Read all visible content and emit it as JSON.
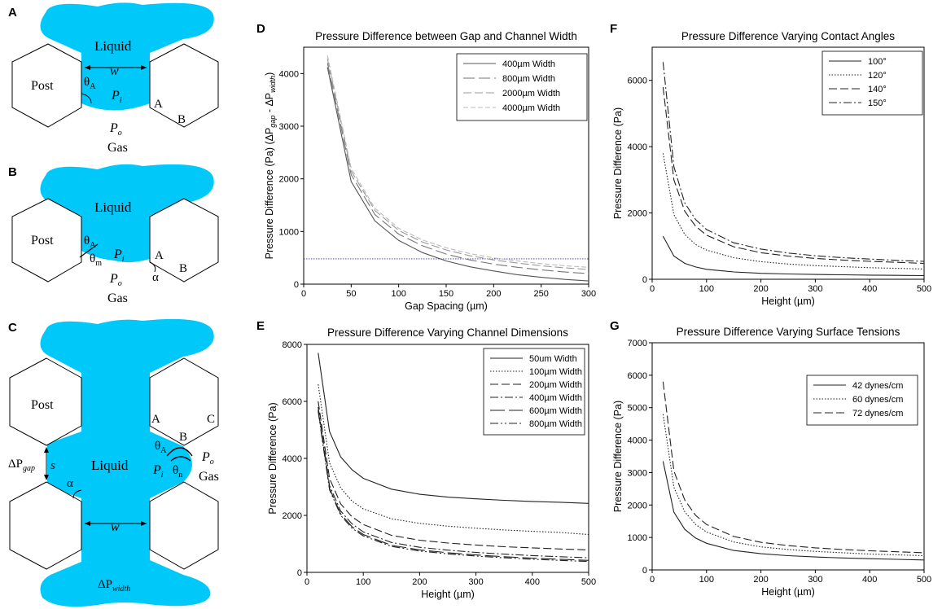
{
  "panel_letters": [
    "A",
    "B",
    "C",
    "D",
    "E",
    "F",
    "G"
  ],
  "schematics": {
    "A": {
      "liquid": "Liquid",
      "post": "Post",
      "gas": "Gas",
      "w": "w",
      "theta": "θ",
      "theta_sub": "A",
      "pi": "P",
      "pi_sub": "i",
      "po": "P",
      "po_sub": "o",
      "corner_a": "A",
      "corner_b": "B"
    },
    "B": {
      "liquid": "Liquid",
      "post": "Post",
      "gas": "Gas",
      "theta": "θ",
      "theta_sub": "A",
      "theta_m": "θ",
      "theta_m_sub": "m",
      "pi": "P",
      "pi_sub": "i",
      "po": "P",
      "po_sub": "o",
      "corner_a": "A",
      "corner_b": "B",
      "alpha": "α"
    },
    "C": {
      "liquid": "Liquid",
      "post": "Post",
      "gas": "Gas",
      "w": "w",
      "s": "s",
      "alpha": "α",
      "dp_gap": "ΔP",
      "dp_gap_sub": "gap",
      "dp_width": "ΔP",
      "dp_width_sub": "width",
      "theta": "θ",
      "theta_sub": "A",
      "theta_n": "θ",
      "theta_n_sub": "n",
      "pi": "P",
      "pi_sub": "i",
      "po": "P",
      "po_sub": "o",
      "corner_a": "A",
      "corner_b": "B",
      "corner_c": "C"
    }
  },
  "colors": {
    "liquid": "#00c8f8",
    "ref_line": "#3333cc"
  },
  "chart_data": [
    {
      "id": "D",
      "type": "line",
      "title": "Pressure Difference between Gap and Channel Width",
      "xlabel": "Gap Spacing (µm)",
      "ylabel": "Pressure Difference (Pa) (ΔP",
      "ylabel_sub1": "gap",
      "ylabel_mid": " - ΔP",
      "ylabel_sub2": "width",
      "ylabel_end": ")",
      "xlim": [
        0,
        300
      ],
      "ylim": [
        0,
        4500
      ],
      "xticks": [
        0,
        50,
        100,
        150,
        200,
        250,
        300
      ],
      "yticks": [
        0,
        1000,
        2000,
        3000,
        4000
      ],
      "legend_position": "top-right",
      "x": [
        25,
        50,
        75,
        100,
        125,
        150,
        175,
        200,
        225,
        250,
        275,
        300
      ],
      "series": [
        {
          "name": "400µm Width",
          "values": [
            4120,
            1950,
            1200,
            830,
            600,
            440,
            330,
            250,
            180,
            130,
            90,
            60
          ],
          "dash": "none",
          "color": "#555555"
        },
        {
          "name": "800µm Width",
          "values": [
            4200,
            2080,
            1320,
            950,
            730,
            570,
            460,
            380,
            320,
            270,
            230,
            200
          ],
          "dash": "14,5",
          "color": "#777777"
        },
        {
          "name": "2000µm Width",
          "values": [
            4280,
            2150,
            1400,
            1020,
            800,
            650,
            540,
            460,
            400,
            350,
            310,
            280
          ],
          "dash": "10,4",
          "color": "#999999"
        },
        {
          "name": "4000µm Width",
          "values": [
            4340,
            2200,
            1440,
            1060,
            840,
            690,
            580,
            500,
            440,
            390,
            350,
            320
          ],
          "dash": "6,3",
          "color": "#bbbbbb"
        }
      ],
      "ref_line": {
        "y": 480
      }
    },
    {
      "id": "E",
      "type": "line",
      "title": "Pressure Difference Varying Channel Dimensions",
      "xlabel": "Height (µm)",
      "ylabel": "Pressure Difference (Pa)",
      "xlim": [
        0,
        500
      ],
      "ylim": [
        0,
        8000
      ],
      "xticks": [
        0,
        100,
        200,
        300,
        400,
        500
      ],
      "yticks": [
        0,
        2000,
        4000,
        6000,
        8000
      ],
      "legend_position": "top-right",
      "x": [
        20,
        40,
        60,
        80,
        100,
        150,
        200,
        250,
        300,
        350,
        400,
        450,
        500
      ],
      "series": [
        {
          "name": "50um Width",
          "values": [
            7700,
            4950,
            4050,
            3600,
            3300,
            2920,
            2740,
            2640,
            2580,
            2530,
            2490,
            2460,
            2420
          ],
          "dash": "none",
          "color": "#222222"
        },
        {
          "name": "100µm Width",
          "values": [
            6600,
            3850,
            2960,
            2500,
            2230,
            1880,
            1720,
            1620,
            1550,
            1490,
            1440,
            1400,
            1330
          ],
          "dash": "1.5,2",
          "color": "#222222"
        },
        {
          "name": "200µm Width",
          "values": [
            6000,
            3300,
            2400,
            1950,
            1680,
            1300,
            1130,
            1030,
            960,
            900,
            860,
            820,
            790
          ],
          "dash": "10,4",
          "color": "#222222"
        },
        {
          "name": "400µm Width",
          "values": [
            5800,
            3050,
            2150,
            1700,
            1420,
            1050,
            880,
            780,
            700,
            640,
            590,
            550,
            510
          ],
          "dash": "10,3,2,3",
          "color": "#222222"
        },
        {
          "name": "600µm Width",
          "values": [
            5700,
            2950,
            2050,
            1600,
            1330,
            950,
            790,
            690,
            610,
            550,
            500,
            460,
            420
          ],
          "dash": "18,5",
          "color": "#222222"
        },
        {
          "name": "800µm Width",
          "values": [
            5650,
            2900,
            2000,
            1550,
            1280,
            910,
            750,
            650,
            570,
            510,
            460,
            420,
            380
          ],
          "dash": "10,3,2,3,2,3",
          "color": "#222222"
        }
      ]
    },
    {
      "id": "F",
      "type": "line",
      "title": "Pressure Difference Varying Contact Angles",
      "xlabel": "Height (µm)",
      "ylabel": "Pressure Difference (Pa)",
      "xlim": [
        0,
        500
      ],
      "ylim": [
        0,
        7000
      ],
      "xticks": [
        0,
        100,
        200,
        300,
        400,
        500
      ],
      "yticks": [
        0,
        2000,
        4000,
        6000
      ],
      "legend_position": "top-right",
      "x": [
        20,
        40,
        60,
        80,
        100,
        150,
        200,
        250,
        300,
        350,
        400,
        450,
        500
      ],
      "series": [
        {
          "name": "100°",
          "values": [
            1300,
            700,
            480,
            370,
            300,
            220,
            180,
            160,
            145,
            135,
            125,
            118,
            110
          ],
          "dash": "none",
          "color": "#222222"
        },
        {
          "name": "120°",
          "values": [
            3800,
            1950,
            1350,
            1050,
            880,
            650,
            530,
            460,
            410,
            380,
            350,
            330,
            310
          ],
          "dash": "1.5,2",
          "color": "#222222"
        },
        {
          "name": "140°",
          "values": [
            5800,
            3000,
            2050,
            1600,
            1330,
            980,
            800,
            700,
            630,
            580,
            540,
            510,
            480
          ],
          "dash": "10,4",
          "color": "#222222"
        },
        {
          "name": "150°",
          "values": [
            6550,
            3400,
            2300,
            1800,
            1500,
            1100,
            910,
            790,
            710,
            650,
            610,
            570,
            540
          ],
          "dash": "10,3,2,3",
          "color": "#222222"
        }
      ]
    },
    {
      "id": "G",
      "type": "line",
      "title": "Pressure Difference Varying Surface Tensions",
      "xlabel": "Height (µm)",
      "ylabel": "Pressure Difference (Pa)",
      "xlim": [
        0,
        500
      ],
      "ylim": [
        0,
        7000
      ],
      "xticks": [
        0,
        100,
        200,
        300,
        400,
        500
      ],
      "yticks": [
        0,
        1000,
        2000,
        3000,
        4000,
        5000,
        6000,
        7000
      ],
      "legend_position": "top-right",
      "x": [
        20,
        40,
        60,
        80,
        100,
        150,
        200,
        250,
        300,
        350,
        400,
        450,
        500
      ],
      "series": [
        {
          "name": "42 dynes/cm",
          "values": [
            3350,
            1780,
            1250,
            980,
            820,
            600,
            500,
            440,
            400,
            370,
            345,
            325,
            305
          ],
          "dash": "none",
          "color": "#222222"
        },
        {
          "name": "60 dynes/cm",
          "values": [
            4800,
            2550,
            1790,
            1400,
            1170,
            860,
            710,
            630,
            570,
            530,
            490,
            465,
            440
          ],
          "dash": "1.5,2",
          "color": "#222222"
        },
        {
          "name": "72 dynes/cm",
          "values": [
            5800,
            3050,
            2150,
            1680,
            1400,
            1030,
            850,
            750,
            680,
            630,
            590,
            560,
            530
          ],
          "dash": "10,4",
          "color": "#222222"
        }
      ]
    }
  ]
}
